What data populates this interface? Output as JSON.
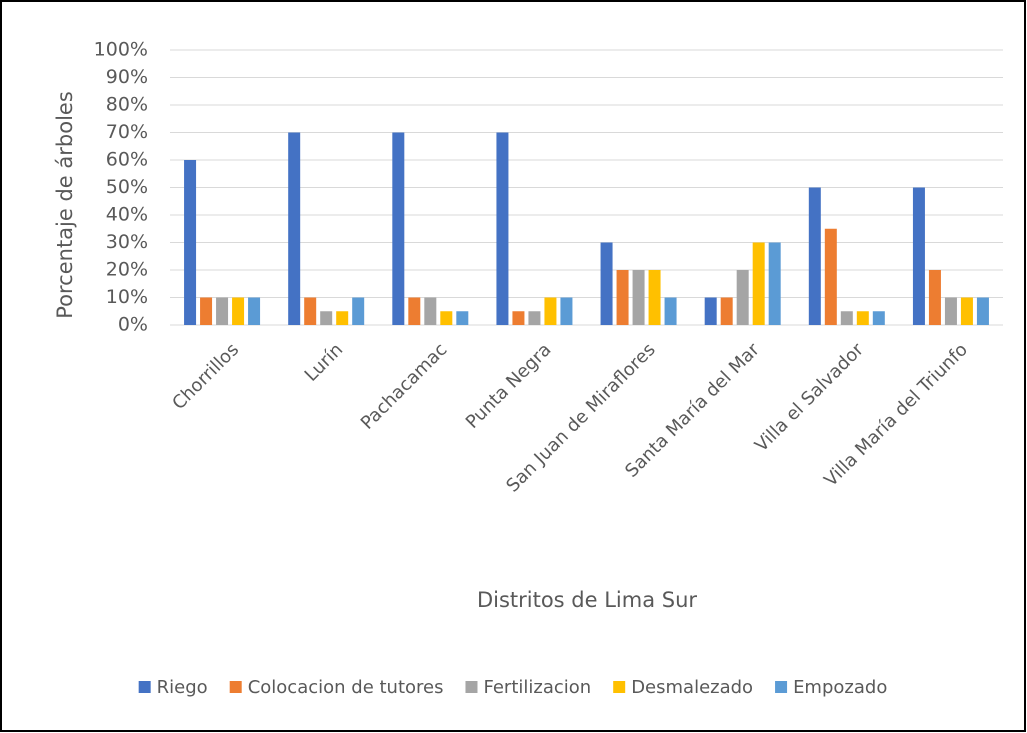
{
  "chart_data": {
    "type": "bar",
    "y_axis_label": "Porcentaje de árboles",
    "x_axis_label": "Distritos de Lima Sur",
    "categories": [
      "Chorrillos",
      "Lurín",
      "Pachacamac",
      "Punta Negra",
      "San Juan de Miraflores",
      "Santa María del Mar",
      "Villa el Salvador",
      "Villa María del Triunfo"
    ],
    "series": [
      {
        "name": "Riego",
        "color": "#4472c4",
        "values": [
          60,
          70,
          70,
          70,
          30,
          10,
          50,
          50
        ]
      },
      {
        "name": "Colocacion de tutores",
        "color": "#ed7d31",
        "values": [
          10,
          10,
          10,
          5,
          20,
          10,
          35,
          20
        ]
      },
      {
        "name": "Fertilizacion",
        "color": "#a5a5a5",
        "values": [
          10,
          5,
          10,
          5,
          20,
          20,
          5,
          10
        ]
      },
      {
        "name": "Desmalezado",
        "color": "#ffc000",
        "values": [
          10,
          5,
          5,
          10,
          20,
          30,
          5,
          10
        ]
      },
      {
        "name": "Empozado",
        "color": "#5b9bd5",
        "values": [
          10,
          10,
          5,
          10,
          10,
          30,
          5,
          10
        ]
      }
    ],
    "ylim": [
      0,
      100
    ],
    "yticks": [
      {
        "value": 0,
        "label": "0%"
      },
      {
        "value": 10,
        "label": "10%"
      },
      {
        "value": 20,
        "label": "20%"
      },
      {
        "value": 30,
        "label": "30%"
      },
      {
        "value": 40,
        "label": "40%"
      },
      {
        "value": 50,
        "label": "50%"
      },
      {
        "value": 60,
        "label": "60%"
      },
      {
        "value": 70,
        "label": "70%"
      },
      {
        "value": 80,
        "label": "80%"
      },
      {
        "value": 90,
        "label": "90%"
      },
      {
        "value": 100,
        "label": "100%"
      }
    ],
    "grid": true,
    "legend": "bottom"
  }
}
